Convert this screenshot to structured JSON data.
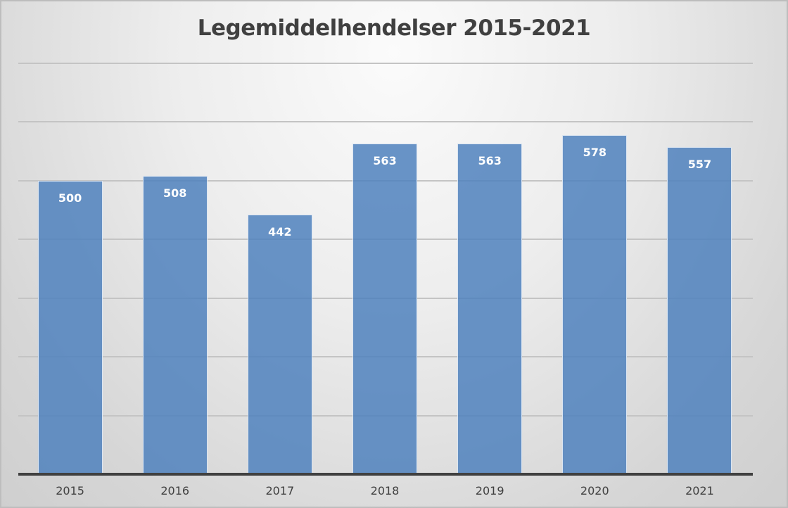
{
  "chart_data": {
    "type": "bar",
    "title": "Legemiddelhendelser 2015-2021",
    "categories": [
      "2015",
      "2016",
      "2017",
      "2018",
      "2019",
      "2020",
      "2021"
    ],
    "values": [
      500,
      508,
      442,
      563,
      563,
      578,
      557
    ],
    "xlabel": "",
    "ylabel": "",
    "ylim": [
      0,
      700
    ],
    "gridlines": [
      100,
      200,
      300,
      400,
      500,
      600,
      700
    ],
    "grid": true,
    "legend": "none",
    "data_labels": true,
    "bar_color": "#4f81bd"
  }
}
